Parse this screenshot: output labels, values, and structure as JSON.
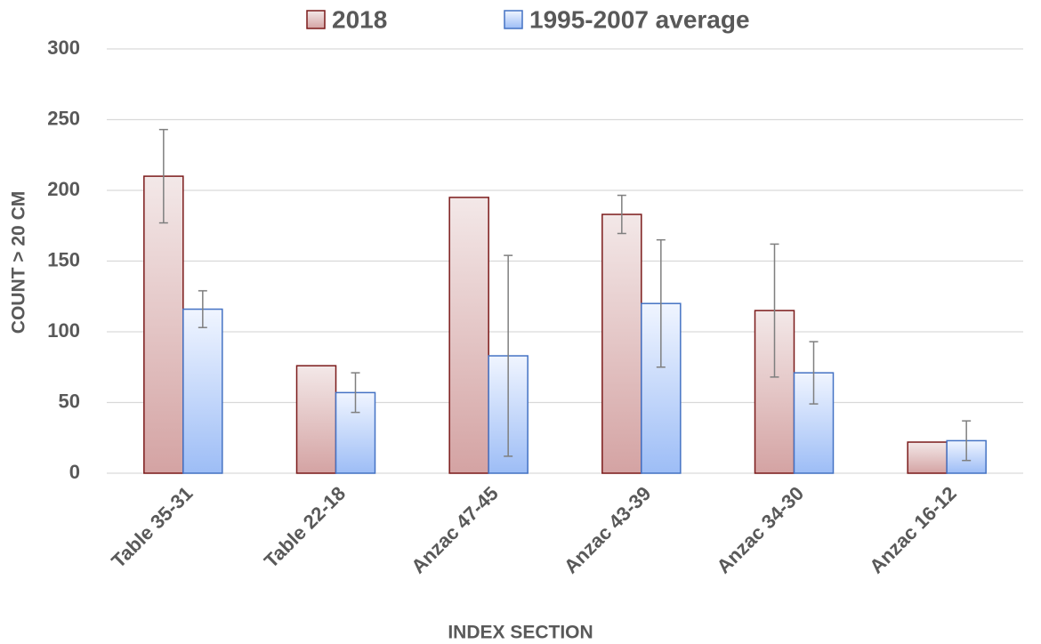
{
  "chart_data": {
    "type": "bar",
    "categories": [
      "Table 35-31",
      "Table 22-18",
      "Anzac 47-45",
      "Anzac 43-39",
      "Anzac 34-30",
      "Anzac 16-12"
    ],
    "series": [
      {
        "name": "2018",
        "color": "#7b1a1a",
        "values": [
          210,
          76,
          195,
          183,
          115,
          22
        ],
        "errors": [
          33,
          null,
          null,
          13.5,
          47,
          null
        ]
      },
      {
        "name": "1995-2007 average",
        "color": "#4472c4",
        "values": [
          116,
          57,
          83,
          120,
          71,
          23
        ],
        "errors": [
          13,
          14,
          71,
          45,
          22,
          14
        ]
      }
    ],
    "ylim": [
      0,
      300
    ],
    "yticks": [
      0,
      50,
      100,
      150,
      200,
      250,
      300
    ],
    "grid": true,
    "ylabel": "COUNT > 20 CM",
    "xlabel": "INDEX SECTION",
    "legend": "top"
  }
}
